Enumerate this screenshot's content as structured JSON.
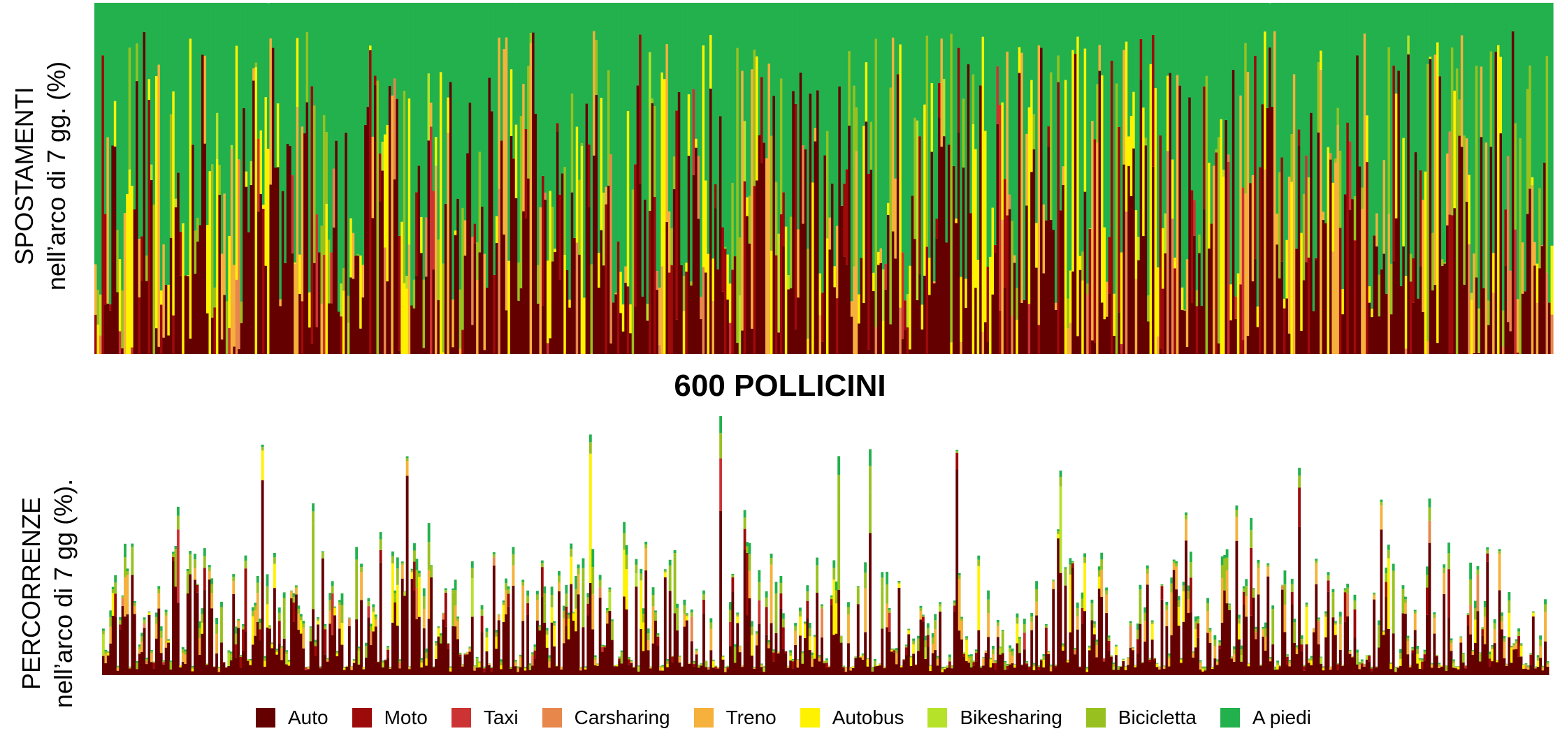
{
  "chart_data": [
    {
      "type": "bar",
      "stacked": true,
      "ylabel": [
        "SPOSTAMENTI",
        "nell’arco di 7 gg. (%)"
      ],
      "ylim": [
        0,
        100
      ],
      "grid": false
    },
    {
      "type": "bar",
      "stacked": true,
      "ylabel": [
        "PERCORRENZE",
        "nell’arco di 7 gg (%)."
      ],
      "grid": false
    }
  ],
  "title": "600 POLLICINI",
  "legend": {
    "placement": "bottom",
    "items": [
      {
        "label": "Auto",
        "color": "#650000"
      },
      {
        "label": "Moto",
        "color": "#9d0a0a"
      },
      {
        "label": "Taxi",
        "color": "#cc3333"
      },
      {
        "label": "Carsharing",
        "color": "#e7874b"
      },
      {
        "label": "Treno",
        "color": "#f5b13b"
      },
      {
        "label": "Autobus",
        "color": "#fff200"
      },
      {
        "label": "Bikesharing",
        "color": "#b6e22a"
      },
      {
        "label": "Bicicletta",
        "color": "#98c11f"
      },
      {
        "label": "A piedi",
        "color": "#22b14c"
      }
    ]
  }
}
